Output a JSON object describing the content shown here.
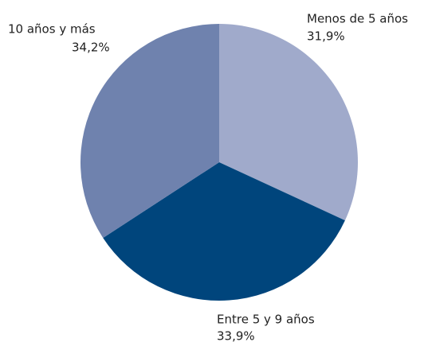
{
  "chart_data": {
    "type": "pie",
    "categories": [
      "Menos de 5 años",
      "Entre 5 y 9 años",
      "10 años y más"
    ],
    "values": [
      31.9,
      33.9,
      34.2
    ],
    "value_labels": [
      "31,9%",
      "33,9%",
      "34,2%"
    ],
    "colors": [
      "#a0aacb",
      "#00457c",
      "#6f82ae"
    ]
  }
}
